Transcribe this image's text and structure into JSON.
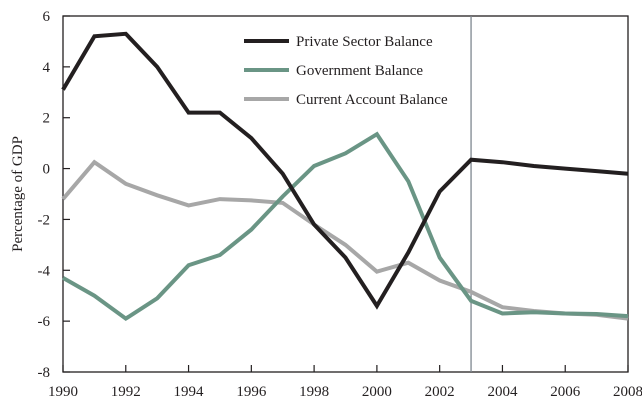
{
  "chart_data": {
    "type": "line",
    "title": "",
    "xlabel": "",
    "ylabel": "Percentage of GDP",
    "xlim": [
      1990,
      2008
    ],
    "ylim": [
      -8,
      6
    ],
    "x_ticks": [
      1990,
      1992,
      1994,
      1996,
      1998,
      2000,
      2002,
      2004,
      2006,
      2008
    ],
    "y_ticks": [
      6,
      4,
      2,
      0,
      -2,
      -4,
      -6,
      -8
    ],
    "grid": false,
    "legend_position": "top-center",
    "reference_line_x": 2003,
    "reference_line_color": "#7f8790",
    "x": [
      1990,
      1991,
      1992,
      1993,
      1994,
      1995,
      1996,
      1997,
      1998,
      1999,
      2000,
      2001,
      2002,
      2003,
      2004,
      2005,
      2006,
      2007,
      2008
    ],
    "series": [
      {
        "name": "Private Sector Balance",
        "color": "#231f20",
        "values": [
          3.1,
          5.2,
          5.3,
          4.0,
          2.2,
          2.2,
          1.2,
          -0.2,
          -2.2,
          -3.5,
          -5.4,
          -3.3,
          -0.9,
          0.35,
          0.25,
          0.1,
          0.0,
          -0.1,
          -0.2
        ]
      },
      {
        "name": "Government Balance",
        "color": "#6a9585",
        "values": [
          -4.3,
          -5.0,
          -5.9,
          -5.1,
          -3.8,
          -3.4,
          -2.4,
          -1.1,
          0.1,
          0.6,
          1.35,
          -0.5,
          -3.5,
          -5.2,
          -5.7,
          -5.65,
          -5.7,
          -5.72,
          -5.8
        ]
      },
      {
        "name": "Current Account Balance",
        "color": "#a7a7a7",
        "values": [
          -1.2,
          0.25,
          -0.6,
          -1.05,
          -1.45,
          -1.2,
          -1.25,
          -1.35,
          -2.2,
          -3.0,
          -4.05,
          -3.7,
          -4.4,
          -4.85,
          -5.45,
          -5.6,
          -5.7,
          -5.75,
          -5.9
        ]
      }
    ]
  }
}
